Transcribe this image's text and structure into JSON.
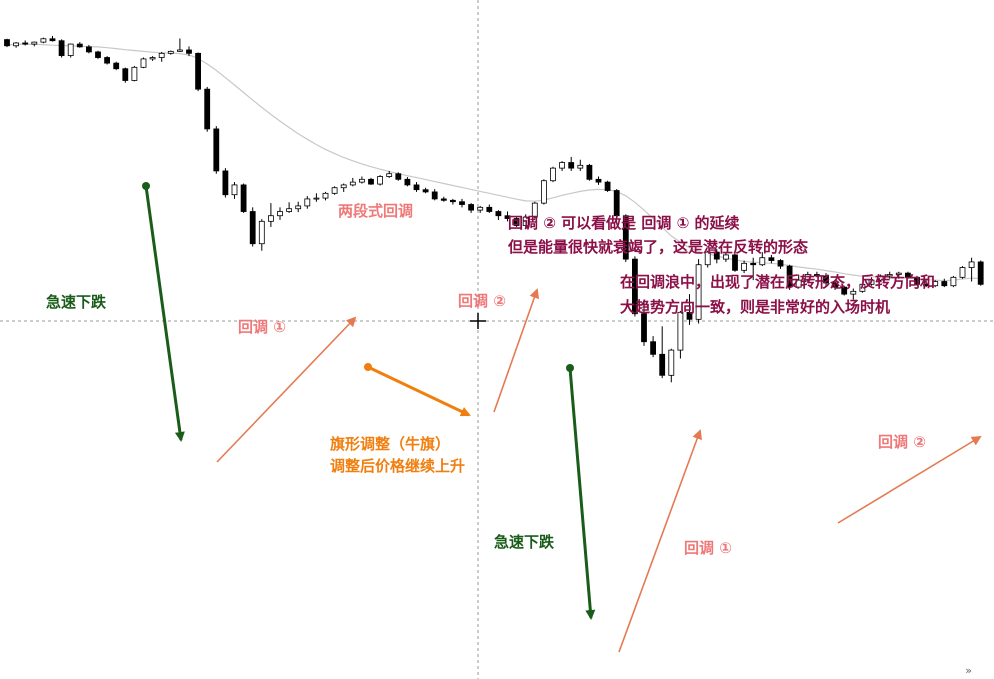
{
  "chart_data": {
    "type": "candlestick",
    "series": [
      {
        "values": [
          [
            100.5,
            100.8,
            97.8,
            98.3
          ],
          [
            98.3,
            99.6,
            97.6,
            99.3
          ],
          [
            99.3,
            100.2,
            98.4,
            98.9
          ],
          [
            98.9,
            99.8,
            98.1,
            99.6
          ],
          [
            99.6,
            101.2,
            99.2,
            100.8
          ],
          [
            100.8,
            101.8,
            99.8,
            100.1
          ],
          [
            100.1,
            100.6,
            94.1,
            94.8
          ],
          [
            94.8,
            99.1,
            94.1,
            98.9
          ],
          [
            98.9,
            99.6,
            97.6,
            97.9
          ],
          [
            97.9,
            98.6,
            95.6,
            96.1
          ],
          [
            96.1,
            96.5,
            93.6,
            94.1
          ],
          [
            94.1,
            94.6,
            91.6,
            92.1
          ],
          [
            92.1,
            92.6,
            89.6,
            90.1
          ],
          [
            90.1,
            90.5,
            85.1,
            85.9
          ],
          [
            85.9,
            91.1,
            85.6,
            90.6
          ],
          [
            90.6,
            94.1,
            90.3,
            93.6
          ],
          [
            93.6,
            94.6,
            92.9,
            94.1
          ],
          [
            94.1,
            96.1,
            92.6,
            95.6
          ],
          [
            95.6,
            96.6,
            95.1,
            96.3
          ],
          [
            96.3,
            100.9,
            96.1,
            96.8
          ],
          [
            96.8,
            98.1,
            94.6,
            95.6
          ],
          [
            95.6,
            95.9,
            82.1,
            82.8
          ],
          [
            82.8,
            83.6,
            67.6,
            68.6
          ],
          [
            68.6,
            69.6,
            52.6,
            53.6
          ],
          [
            53.6,
            54.6,
            44.1,
            45.1
          ],
          [
            45.1,
            49.6,
            43.6,
            48.6
          ],
          [
            48.6,
            49.1,
            38.6,
            39.1
          ],
          [
            39.1,
            40.6,
            26.6,
            27.6
          ],
          [
            27.6,
            36.4,
            25.1,
            35.6
          ],
          [
            35.6,
            42.1,
            33.6,
            37.6
          ],
          [
            37.6,
            40.6,
            36.1,
            39.1
          ],
          [
            39.1,
            42.4,
            38.6,
            40.1
          ],
          [
            40.1,
            42.6,
            38.9,
            41.1
          ],
          [
            41.1,
            44.6,
            40.1,
            43.6
          ],
          [
            43.6,
            45.6,
            42.6,
            43.9
          ],
          [
            43.9,
            46.1,
            43.1,
            45.6
          ],
          [
            45.6,
            48.1,
            45.1,
            47.6
          ],
          [
            47.6,
            49.1,
            46.1,
            48.6
          ],
          [
            48.6,
            51.1,
            48.1,
            49.6
          ],
          [
            49.6,
            51.6,
            49.1,
            50.6
          ],
          [
            50.6,
            51.1,
            48.6,
            48.9
          ],
          [
            48.9,
            52.1,
            48.4,
            51.6
          ],
          [
            51.6,
            53.6,
            51.1,
            52.6
          ],
          [
            52.6,
            53.1,
            50.1,
            50.6
          ],
          [
            50.6,
            51.4,
            48.1,
            48.6
          ],
          [
            48.6,
            49.6,
            46.1,
            46.9
          ],
          [
            46.9,
            47.6,
            45.6,
            46.1
          ],
          [
            46.1,
            47.1,
            43.1,
            43.6
          ],
          [
            43.6,
            44.4,
            42.6,
            43.1
          ],
          [
            43.1,
            43.6,
            41.6,
            42.6
          ],
          [
            42.6,
            43.6,
            40.6,
            41.6
          ],
          [
            41.6,
            42.1,
            38.6,
            39.6
          ],
          [
            39.6,
            41.1,
            38.6,
            40.6
          ],
          [
            40.6,
            41.6,
            38.6,
            39.1
          ],
          [
            39.1,
            39.6,
            36.1,
            37.6
          ],
          [
            37.6,
            39.1,
            35.6,
            36.6
          ],
          [
            36.6,
            37.1,
            33.6,
            34.1
          ],
          [
            34.1,
            38.1,
            33.1,
            37.1
          ],
          [
            37.1,
            42.6,
            36.6,
            42.1
          ],
          [
            42.1,
            50.6,
            41.6,
            50.1
          ],
          [
            50.1,
            55.1,
            49.6,
            54.6
          ],
          [
            54.6,
            57.1,
            53.6,
            56.6
          ],
          [
            56.6,
            58.6,
            53.6,
            54.6
          ],
          [
            54.6,
            57.6,
            53.6,
            55.6
          ],
          [
            55.6,
            56.1,
            50.1,
            50.6
          ],
          [
            50.6,
            51.6,
            48.6,
            49.6
          ],
          [
            49.6,
            50.1,
            46.1,
            46.6
          ],
          [
            46.6,
            47.1,
            36.6,
            37.6
          ],
          [
            37.6,
            38.1,
            21.1,
            22.1
          ],
          [
            22.1,
            23.1,
            1.6,
            2.6
          ],
          [
            2.6,
            7.6,
            -8.9,
            -7.4
          ],
          [
            -7.4,
            -5.4,
            -12.9,
            -11.9
          ],
          [
            -11.9,
            -1.9,
            -20.4,
            -19.4
          ],
          [
            -19.4,
            -9.9,
            -21.9,
            -10.4
          ],
          [
            -10.4,
            3.6,
            -13.4,
            3.1
          ],
          [
            3.1,
            9.6,
            -1.4,
            0.6
          ],
          [
            0.6,
            22.1,
            -0.9,
            20.1
          ],
          [
            20.1,
            25.1,
            19.1,
            24.6
          ],
          [
            24.6,
            25.6,
            20.6,
            22.1
          ],
          [
            22.1,
            24.6,
            21.1,
            23.6
          ],
          [
            23.6,
            24.1,
            17.6,
            18.1
          ],
          [
            18.1,
            21.6,
            17.1,
            20.6
          ],
          [
            20.6,
            22.6,
            14.6,
            20.1
          ],
          [
            20.1,
            24.6,
            19.6,
            22.6
          ],
          [
            22.6,
            23.6,
            20.6,
            21.6
          ],
          [
            21.6,
            22.1,
            18.6,
            19.6
          ],
          [
            19.6,
            20.1,
            11.1,
            12.1
          ],
          [
            12.1,
            16.6,
            11.6,
            14.6
          ],
          [
            14.6,
            17.6,
            13.6,
            16.6
          ],
          [
            16.6,
            17.6,
            15.6,
            16.1
          ],
          [
            16.1,
            17.1,
            12.6,
            13.6
          ],
          [
            13.6,
            14.6,
            11.1,
            12.1
          ],
          [
            12.1,
            12.6,
            9.1,
            9.6
          ],
          [
            9.6,
            11.6,
            7.6,
            10.6
          ],
          [
            10.6,
            13.6,
            10.1,
            13.1
          ],
          [
            13.1,
            15.6,
            12.6,
            14.6
          ],
          [
            14.6,
            16.6,
            14.1,
            16.1
          ],
          [
            16.1,
            17.6,
            15.1,
            16.6
          ],
          [
            16.6,
            17.6,
            15.1,
            17.1
          ],
          [
            17.1,
            17.6,
            15.1,
            15.6
          ],
          [
            15.6,
            16.1,
            12.6,
            13.1
          ],
          [
            13.1,
            14.6,
            12.1,
            12.6
          ],
          [
            12.6,
            14.6,
            12.1,
            14.1
          ],
          [
            14.1,
            15.1,
            12.1,
            12.6
          ],
          [
            12.6,
            16.1,
            12.1,
            15.6
          ],
          [
            15.6,
            19.6,
            15.1,
            19.1
          ],
          [
            19.1,
            22.6,
            14.1,
            21.1
          ],
          [
            21.1,
            21.6,
            12.6,
            13.1
          ]
        ]
      }
    ],
    "ma_line": [
      98.6,
      98.8,
      98.9,
      98.8,
      98.7,
      98.5,
      98.4,
      98.3,
      98.1,
      98.0,
      97.9,
      97.6,
      97.3,
      96.9,
      96.6,
      96.3,
      96.0,
      95.8,
      95.7,
      95.5,
      95.0,
      93.8,
      91.8,
      89.5,
      86.9,
      84.3,
      81.6,
      78.9,
      76.3,
      73.8,
      71.4,
      69.1,
      66.9,
      64.9,
      63.0,
      61.3,
      59.8,
      58.4,
      57.2,
      56.1,
      55.1,
      54.2,
      53.4,
      52.6,
      51.9,
      51.2,
      50.5,
      49.8,
      49.1,
      48.4,
      47.7,
      47.0,
      46.3,
      45.6,
      44.9,
      44.2,
      43.5,
      42.9,
      42.8,
      43.2,
      44.0,
      44.9,
      45.6,
      46.3,
      46.8,
      47.0,
      46.9,
      46.3,
      44.7,
      42.4,
      39.6,
      36.6,
      33.4,
      30.4,
      28.1,
      26.2,
      24.8,
      24.0,
      23.2,
      22.5,
      21.8,
      21.3,
      21.0,
      20.8,
      20.6,
      20.3,
      19.8,
      19.3,
      18.9,
      18.5,
      18.0,
      17.5,
      16.9,
      16.4,
      16.0,
      15.8,
      15.7,
      15.6,
      15.5,
      15.3,
      15.0,
      14.8,
      14.6,
      14.4,
      14.6,
      15.0,
      15.3,
      15.2
    ],
    "xlabel": "",
    "ylabel": "",
    "grid": false,
    "crosshair": true,
    "annotations": {
      "fast_drop_1": "急速下跌",
      "fast_drop_2": "急速下跌",
      "two_leg_pullback": "两段式回调",
      "pullback1_first": "回调 ①",
      "pullback2_first": "回调 ②",
      "pullback1_second": "回调 ①",
      "pullback2_second": "回调 ②",
      "flag_line1": "旗形调整（牛旗）",
      "flag_line2": "调整后价格继续上升",
      "note1_line1": "回调 ② 可以看做是 回调 ① 的延续",
      "note1_line2": "但是能量很快就衰竭了，这是潜在反转的形态",
      "note2_line1": "在回调浪中，出现了潜在反转形态，反转方向和",
      "note2_line2": "大趋势方向一致，则是非常好的入场时机"
    },
    "colors": {
      "bear": "#000000",
      "bull": "#ffffff",
      "ma": "#c8c8c8",
      "drop_arrow": "#1a5c1a",
      "pullback_arrow": "#e57a52",
      "flag_arrow": "#f07f0f",
      "crosshair": "#9a9a9a"
    }
  }
}
